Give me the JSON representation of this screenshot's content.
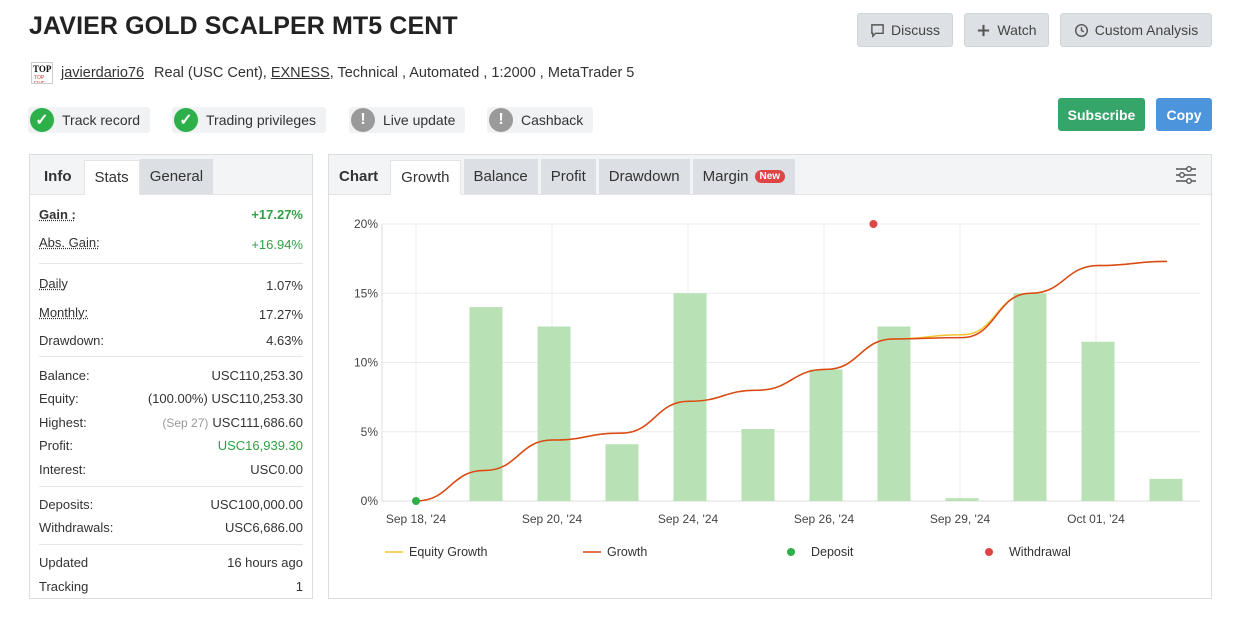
{
  "page": {
    "title": "JAVIER GOLD SCALPER MT5 CENT",
    "buttons": {
      "discuss": "Discuss",
      "watch": "Watch",
      "custom_analysis": "Custom Analysis",
      "subscribe": "Subscribe",
      "copy": "Copy"
    },
    "subline": {
      "user": "javierdario76",
      "account_type": "Real (USC Cent),",
      "broker": "EXNESS",
      "rest": ", Technical , Automated , 1:2000 , MetaTrader 5",
      "avatar_top": "TOP",
      "avatar_bottom": "TOP FIVE"
    },
    "badges": [
      {
        "label": "Track record",
        "icon": "check-icon",
        "status": "green"
      },
      {
        "label": "Trading privileges",
        "icon": "check-icon",
        "status": "green"
      },
      {
        "label": "Live update",
        "icon": "exclamation-icon",
        "status": "grey"
      },
      {
        "label": "Cashback",
        "icon": "exclamation-icon",
        "status": "grey"
      }
    ],
    "colors": {
      "subscribe": "#35a56a",
      "copy": "#4c95dc",
      "positive": "#2ea243",
      "bar": "#b8e2b5",
      "growth_line": "#d9471a",
      "equity_line": "#f2c52b",
      "deposit": "#2db049",
      "withdrawal": "#e04545"
    }
  },
  "left": {
    "tabs": {
      "info": "Info",
      "stats": "Stats",
      "general": "General"
    },
    "gain_label": "Gain :",
    "gain_value": "+17.27%",
    "abs_gain_label": "Abs. Gain:",
    "abs_gain_value": "+16.94%",
    "daily_label": "Daily",
    "daily_value": "1.07%",
    "monthly_label": "Monthly:",
    "monthly_value": "17.27%",
    "drawdown_label": "Drawdown:",
    "drawdown_value": "4.63%",
    "balance_label": "Balance:",
    "balance_value": "USC110,253.30",
    "equity_label": "Equity:",
    "equity_pct": "(100.00%)",
    "equity_value": "USC110,253.30",
    "highest_label": "Highest:",
    "highest_date": "(Sep 27)",
    "highest_value": "USC111,686.60",
    "profit_label": "Profit:",
    "profit_value": "USC16,939.30",
    "interest_label": "Interest:",
    "interest_value": "USC0.00",
    "deposits_label": "Deposits:",
    "deposits_value": "USC100,000.00",
    "withdrawals_label": "Withdrawals:",
    "withdrawals_value": "USC6,686.00",
    "updated_label": "Updated",
    "updated_value": "16 hours ago",
    "tracking_label": "Tracking",
    "tracking_value": "1"
  },
  "right": {
    "tabs": {
      "chart": "Chart",
      "growth": "Growth",
      "balance": "Balance",
      "profit": "Profit",
      "drawdown": "Drawdown",
      "margin": "Margin",
      "new_badge": "New"
    }
  },
  "chart_data": {
    "type": "bar",
    "ylim": [
      0,
      20
    ],
    "yticks": [
      "0%",
      "5%",
      "10%",
      "15%",
      "20%"
    ],
    "ytick_values": [
      0,
      5,
      10,
      15,
      20
    ],
    "x_tick_labels": [
      "Sep 18, '24",
      "Sep 20, '24",
      "Sep 24, '24",
      "Sep 26, '24",
      "Sep 29, '24",
      "Oct 01, '24"
    ],
    "bar_values": [
      14.0,
      12.6,
      4.1,
      15.0,
      5.2,
      9.5,
      12.6,
      0.2,
      15.0,
      11.5,
      1.6
    ],
    "series": [
      {
        "name": "Equity Growth",
        "color": "#f2c52b",
        "x": [
          0,
          1,
          2,
          3,
          4,
          5,
          6,
          7,
          8,
          9,
          10,
          11
        ],
        "values": [
          0.0,
          2.2,
          4.4,
          4.9,
          7.2,
          8.0,
          9.5,
          11.7,
          12.0,
          15.0,
          17.0,
          17.3
        ]
      },
      {
        "name": "Growth",
        "color": "#d9471a",
        "x": [
          0,
          1,
          2,
          3,
          4,
          5,
          6,
          7,
          8,
          9,
          10,
          11
        ],
        "values": [
          0.0,
          2.2,
          4.4,
          4.9,
          7.2,
          8.0,
          9.5,
          11.7,
          11.8,
          15.0,
          17.0,
          17.3
        ]
      }
    ],
    "deposit": {
      "x": 0,
      "y": 0
    },
    "withdrawal": {
      "x": 6.7,
      "y": 20
    },
    "legend": [
      "Equity Growth",
      "Growth",
      "Deposit",
      "Withdrawal"
    ]
  }
}
